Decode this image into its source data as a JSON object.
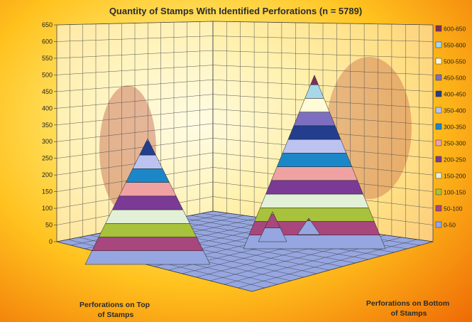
{
  "chart_data": {
    "type": "surface",
    "title": "Quantity of Stamps With Identified Perforations (n = 5789)",
    "z_axis": {
      "ticks": [
        0,
        50,
        100,
        150,
        200,
        250,
        300,
        350,
        400,
        450,
        500,
        550,
        600,
        650
      ],
      "range": [
        0,
        650
      ]
    },
    "x_axis_label_lines": [
      "Perforations on Top",
      "of Stamps"
    ],
    "y_axis_label_lines": [
      "Perforations on Bottom",
      "of Stamps"
    ],
    "legend": [
      {
        "label": "600-650",
        "color": "#7e2f5c"
      },
      {
        "label": "550-600",
        "color": "#a6d8ea"
      },
      {
        "label": "500-550",
        "color": "#fffbd6"
      },
      {
        "label": "450-500",
        "color": "#7d6fc0"
      },
      {
        "label": "400-450",
        "color": "#233e8c"
      },
      {
        "label": "350-400",
        "color": "#bcc3f0"
      },
      {
        "label": "300-350",
        "color": "#1c87c8"
      },
      {
        "label": "250-300",
        "color": "#f0a2a2"
      },
      {
        "label": "200-250",
        "color": "#7a3a96"
      },
      {
        "label": "150-200",
        "color": "#e2f0d8"
      },
      {
        "label": "100-150",
        "color": "#a8c23e"
      },
      {
        "label": "50-100",
        "color": "#a8467e"
      },
      {
        "label": "0-50",
        "color": "#96a6e0"
      }
    ],
    "peaks": [
      {
        "approx_max": 460
      },
      {
        "approx_max": 635
      },
      {
        "approx_max": 110
      },
      {
        "approx_max": 60
      }
    ],
    "grid": true,
    "legend_position": "right"
  }
}
